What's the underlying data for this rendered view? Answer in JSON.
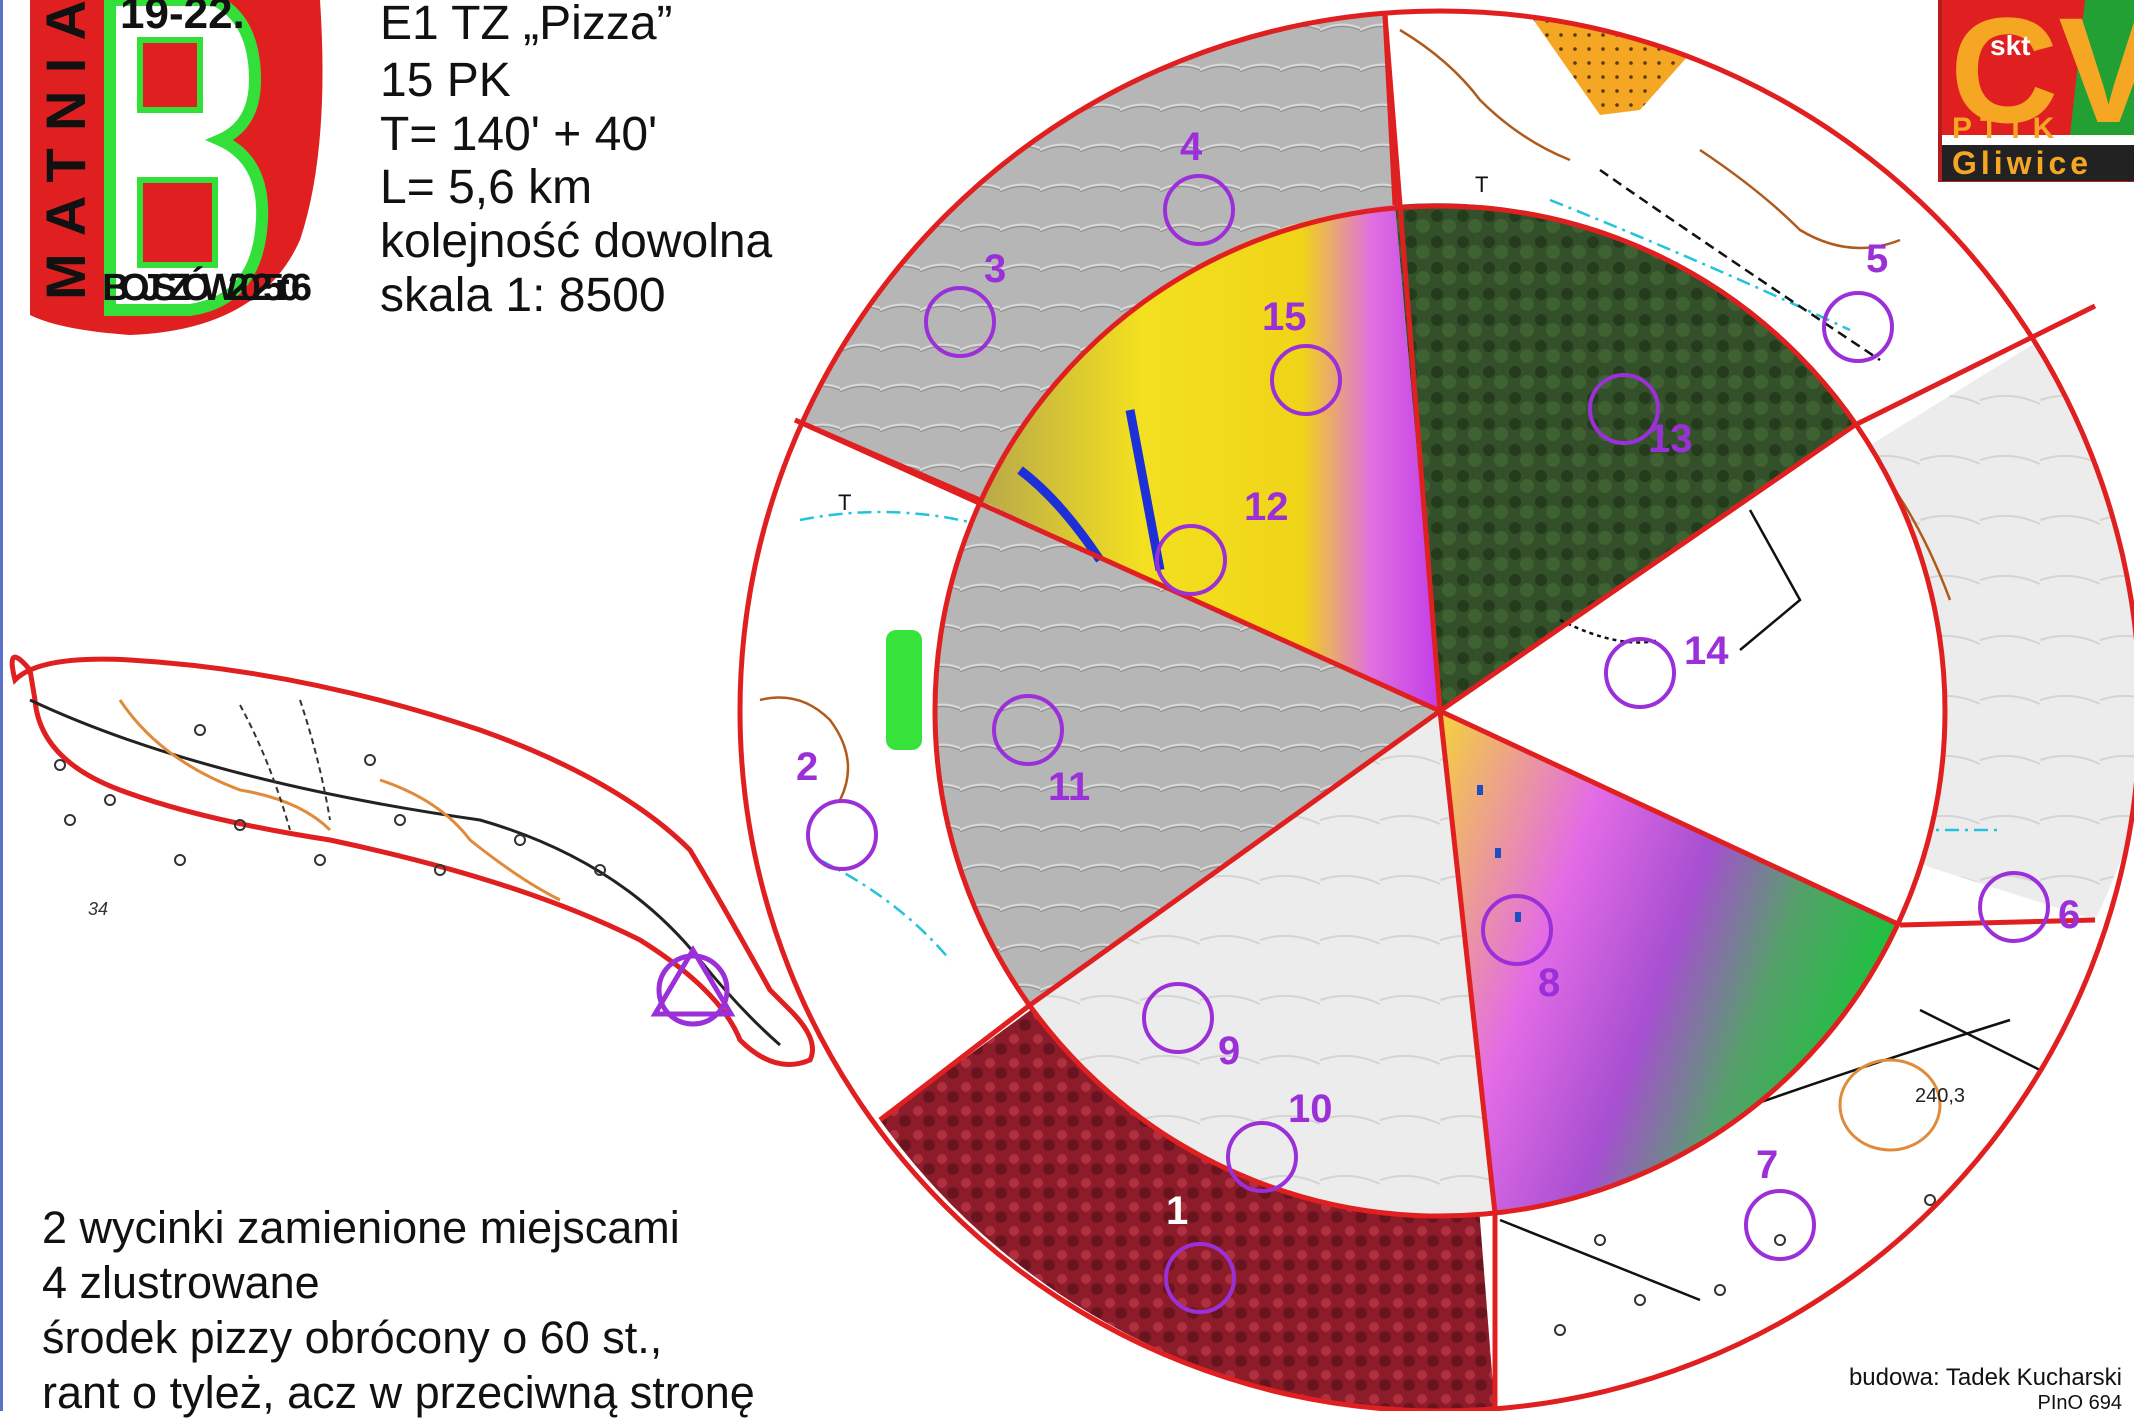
{
  "event": {
    "title": "E1 TZ „Pizza”",
    "controls": "15 PK",
    "time": "T= 140' + 40'",
    "length": "L= 5,6 km",
    "order": "kolejność dowolna",
    "scale": "skala 1: 8500"
  },
  "notes": [
    "2 wycinki zamienione miejscami",
    "4 zlustrowane",
    "środek pizzy obrócony o 60 st.,",
    "rant o tyleż, acz w przeciwną stronę"
  ],
  "credit": {
    "author": "budowa: Tadek Kucharski",
    "license": "PInO 694"
  },
  "logo_left": {
    "vertical_text": "MATNIA",
    "date_text": "19-22.",
    "arc_text": "BOJSZÓW2025r.06"
  },
  "logo_right": {
    "letters": "CV",
    "small_text": "skt",
    "org": "PTTK",
    "city": "Gliwice"
  },
  "map": {
    "elevation_label": "240,3",
    "spot_height": "34",
    "symbols": [
      "T"
    ]
  },
  "controls": [
    {
      "number": "1"
    },
    {
      "number": "2"
    },
    {
      "number": "3"
    },
    {
      "number": "4"
    },
    {
      "number": "5"
    },
    {
      "number": "6"
    },
    {
      "number": "7"
    },
    {
      "number": "8"
    },
    {
      "number": "9"
    },
    {
      "number": "10"
    },
    {
      "number": "11"
    },
    {
      "number": "12"
    },
    {
      "number": "13"
    },
    {
      "number": "14"
    },
    {
      "number": "15"
    }
  ],
  "colors": {
    "course_red": "#e02020",
    "control_purple": "#9b30d9",
    "lidar_grey": "#b8b8b8",
    "forest_green": "#2f4a22",
    "infrared_red": "#8a1a28",
    "contour_brown": "#b05a1c",
    "water_cyan": "#21c4d9",
    "logo_green": "#33e03a"
  }
}
